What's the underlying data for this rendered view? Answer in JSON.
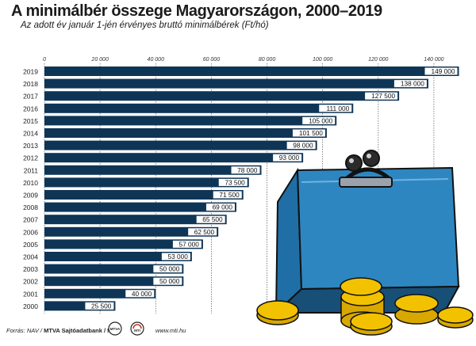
{
  "title": "A minimálbér összege Magyarországon, 2000–2019",
  "subtitle": "Az adott év január 1-jén érvényes bruttó minimálbérek (Ft/hó)",
  "footer": {
    "source": "Forrás: NAV / ",
    "agency": "MTVA Sajtóadatbank / MTI",
    "website": "www.mti.hu"
  },
  "logos": [
    {
      "icon": "mtva-logo-icon",
      "text": "MTVA"
    },
    {
      "icon": "mti-logo-icon",
      "text": "MTI"
    }
  ],
  "colors": {
    "bar": "#0f3556",
    "label_bg": "#ffffff",
    "wallet": "#2e86c1",
    "coin": "#f2c200"
  },
  "chart_data": {
    "type": "bar",
    "orientation": "horizontal",
    "categories": [
      "2019",
      "2018",
      "2017",
      "2016",
      "2015",
      "2014",
      "2013",
      "2012",
      "2011",
      "2010",
      "2009",
      "2008",
      "2007",
      "2006",
      "2005",
      "2004",
      "2003",
      "2002",
      "2001",
      "2000"
    ],
    "values": [
      149000,
      138000,
      127500,
      111000,
      105000,
      101500,
      98000,
      93000,
      78000,
      73500,
      71500,
      69000,
      65500,
      62500,
      57000,
      53000,
      50000,
      50000,
      40000,
      25500
    ],
    "value_labels": [
      "149 000",
      "138 000",
      "127 500",
      "111 000",
      "105 000",
      "101 500",
      "98 000",
      "93 000",
      "78 000",
      "73 500",
      "71 500",
      "69 000",
      "65 500",
      "62 500",
      "57 000",
      "53 000",
      "50 000",
      "50 000",
      "40 000",
      "25 500"
    ],
    "ticks": [
      0,
      20000,
      40000,
      60000,
      80000,
      100000,
      120000,
      140000
    ],
    "tick_labels": [
      "0",
      "20 000",
      "40 000",
      "60 000",
      "80 000",
      "100 000",
      "120 000",
      "140 000"
    ],
    "xlim": [
      0,
      150000
    ],
    "grid": true,
    "legend": "none"
  }
}
